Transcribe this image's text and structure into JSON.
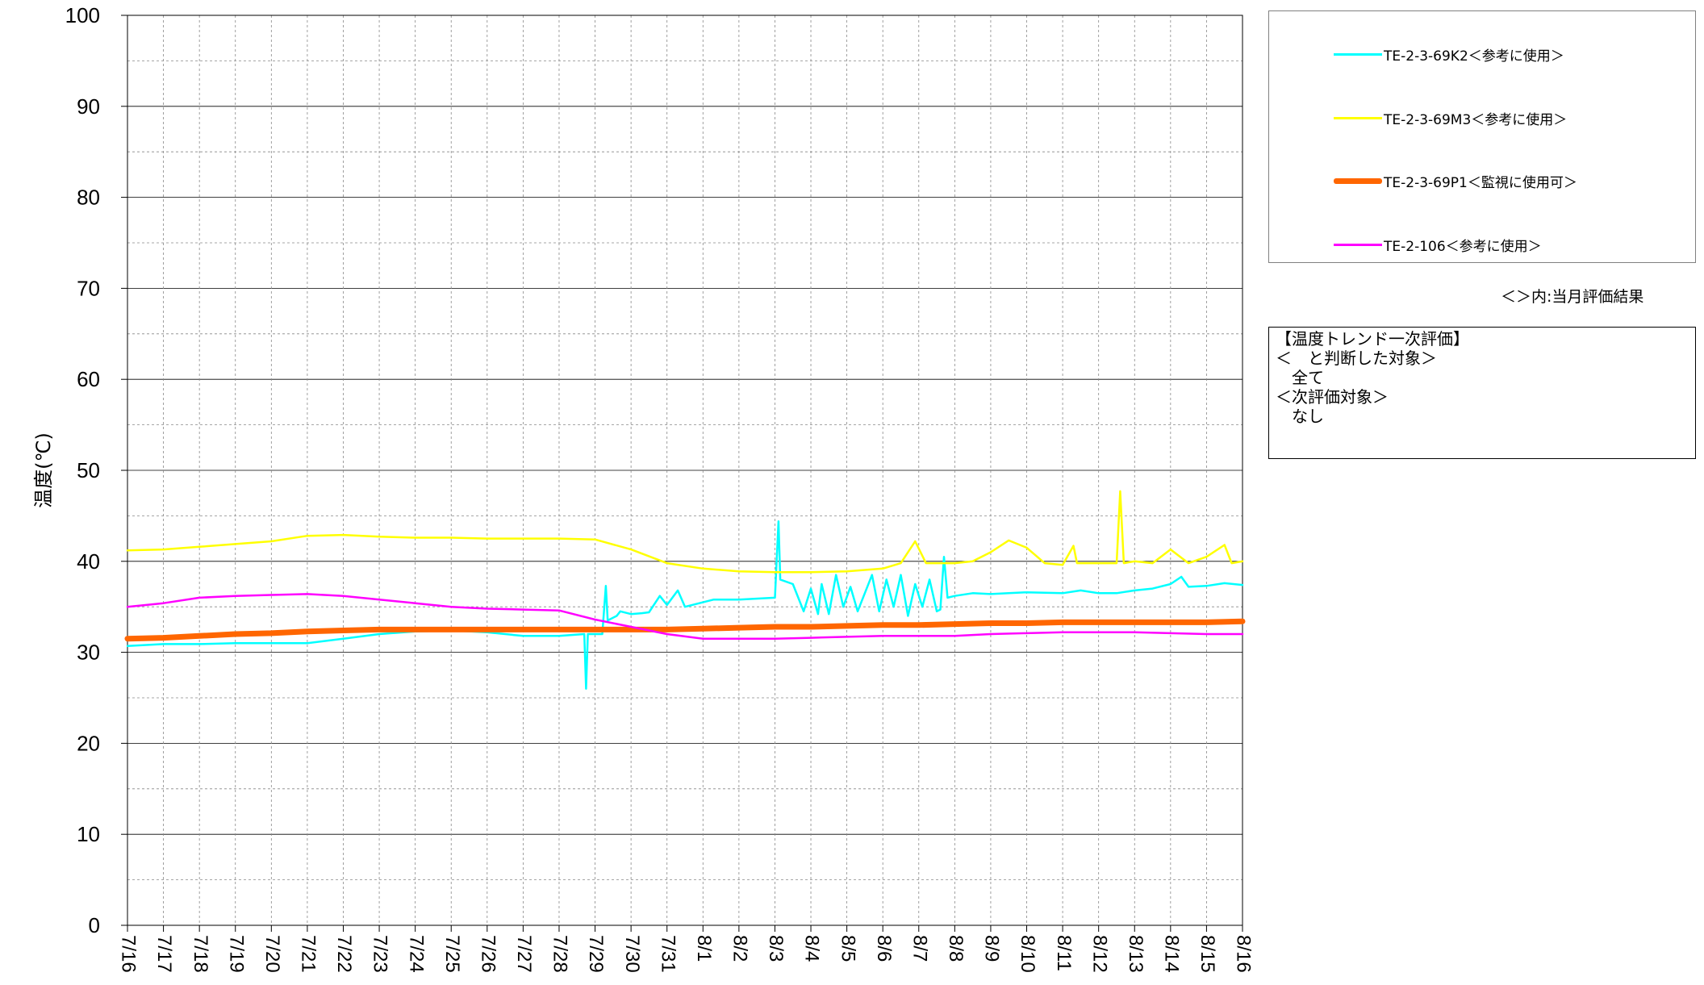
{
  "chart_data": {
    "type": "line",
    "ylabel": "温度(℃)",
    "ylim": [
      0,
      100
    ],
    "yticks": [
      0,
      10,
      20,
      30,
      40,
      50,
      60,
      70,
      80,
      90,
      100
    ],
    "xlim_day": [
      0,
      31
    ],
    "x_tick_labels": [
      "7/16",
      "7/17",
      "7/18",
      "7/19",
      "7/20",
      "7/21",
      "7/22",
      "7/23",
      "7/24",
      "7/25",
      "7/26",
      "7/27",
      "7/28",
      "7/29",
      "7/30",
      "7/31",
      "8/1",
      "8/2",
      "8/3",
      "8/4",
      "8/5",
      "8/6",
      "8/7",
      "8/8",
      "8/9",
      "8/10",
      "8/11",
      "8/12",
      "8/13",
      "8/14",
      "8/15",
      "8/16"
    ],
    "grid": true,
    "legend_position": "right",
    "series": [
      {
        "name": "TE-2-3-69K2＜参考に使用＞",
        "color": "#00ffff",
        "width": 2.5,
        "points": [
          [
            0,
            30.7
          ],
          [
            1,
            30.9
          ],
          [
            2,
            30.9
          ],
          [
            3,
            31.0
          ],
          [
            4,
            31.0
          ],
          [
            5,
            31.0
          ],
          [
            6,
            31.5
          ],
          [
            7,
            32.0
          ],
          [
            8,
            32.3
          ],
          [
            9,
            32.4
          ],
          [
            10,
            32.2
          ],
          [
            11,
            31.8
          ],
          [
            12,
            31.8
          ],
          [
            12.7,
            32.0
          ],
          [
            12.75,
            26.0
          ],
          [
            12.8,
            32.0
          ],
          [
            13.2,
            32.0
          ],
          [
            13.3,
            37.3
          ],
          [
            13.35,
            33.5
          ],
          [
            13.6,
            34.0
          ],
          [
            13.7,
            34.5
          ],
          [
            14.0,
            34.2
          ],
          [
            14.3,
            34.3
          ],
          [
            14.5,
            34.4
          ],
          [
            14.8,
            36.2
          ],
          [
            15.0,
            35.2
          ],
          [
            15.3,
            36.8
          ],
          [
            15.5,
            35.0
          ],
          [
            16.0,
            35.5
          ],
          [
            16.3,
            35.8
          ],
          [
            17.0,
            35.8
          ],
          [
            18.0,
            36.0
          ],
          [
            18.1,
            44.4
          ],
          [
            18.15,
            38.0
          ],
          [
            18.5,
            37.5
          ],
          [
            18.8,
            34.5
          ],
          [
            19.0,
            37.0
          ],
          [
            19.2,
            34.2
          ],
          [
            19.3,
            37.5
          ],
          [
            19.5,
            34.2
          ],
          [
            19.7,
            38.5
          ],
          [
            19.9,
            35.0
          ],
          [
            20.1,
            37.2
          ],
          [
            20.3,
            34.5
          ],
          [
            20.5,
            36.5
          ],
          [
            20.7,
            38.5
          ],
          [
            20.9,
            34.5
          ],
          [
            21.1,
            38.0
          ],
          [
            21.3,
            35.0
          ],
          [
            21.5,
            38.5
          ],
          [
            21.7,
            34.0
          ],
          [
            21.9,
            37.5
          ],
          [
            22.1,
            35.0
          ],
          [
            22.3,
            38.0
          ],
          [
            22.5,
            34.5
          ],
          [
            22.6,
            34.7
          ],
          [
            22.7,
            40.5
          ],
          [
            22.8,
            36.0
          ],
          [
            23.0,
            36.2
          ],
          [
            23.5,
            36.5
          ],
          [
            24.0,
            36.4
          ],
          [
            24.5,
            36.5
          ],
          [
            25.0,
            36.6
          ],
          [
            26.0,
            36.5
          ],
          [
            26.5,
            36.8
          ],
          [
            27.0,
            36.5
          ],
          [
            27.5,
            36.5
          ],
          [
            28.0,
            36.8
          ],
          [
            28.5,
            37.0
          ],
          [
            29.0,
            37.5
          ],
          [
            29.3,
            38.3
          ],
          [
            29.5,
            37.2
          ],
          [
            30.0,
            37.3
          ],
          [
            30.5,
            37.6
          ],
          [
            31.0,
            37.4
          ]
        ]
      },
      {
        "name": "TE-2-3-69M3＜参考に使用＞",
        "color": "#ffff00",
        "width": 2.5,
        "points": [
          [
            0,
            41.2
          ],
          [
            1,
            41.3
          ],
          [
            2,
            41.6
          ],
          [
            3,
            41.9
          ],
          [
            4,
            42.2
          ],
          [
            5,
            42.8
          ],
          [
            6,
            42.9
          ],
          [
            7,
            42.7
          ],
          [
            8,
            42.6
          ],
          [
            9,
            42.6
          ],
          [
            10,
            42.5
          ],
          [
            11,
            42.5
          ],
          [
            12,
            42.5
          ],
          [
            13,
            42.4
          ],
          [
            14,
            41.3
          ],
          [
            15,
            39.8
          ],
          [
            16,
            39.2
          ],
          [
            17,
            38.9
          ],
          [
            18,
            38.8
          ],
          [
            19,
            38.8
          ],
          [
            20,
            38.9
          ],
          [
            21,
            39.2
          ],
          [
            21.5,
            39.8
          ],
          [
            21.9,
            42.2
          ],
          [
            22.2,
            39.8
          ],
          [
            23,
            39.8
          ],
          [
            23.5,
            40.0
          ],
          [
            24,
            41.0
          ],
          [
            24.5,
            42.3
          ],
          [
            25,
            41.5
          ],
          [
            25.5,
            39.8
          ],
          [
            26,
            39.6
          ],
          [
            26.3,
            41.7
          ],
          [
            26.4,
            39.8
          ],
          [
            27,
            39.8
          ],
          [
            27.5,
            39.8
          ],
          [
            27.6,
            47.7
          ],
          [
            27.7,
            39.8
          ],
          [
            28,
            40.0
          ],
          [
            28.5,
            39.8
          ],
          [
            29,
            41.3
          ],
          [
            29.5,
            39.8
          ],
          [
            30,
            40.5
          ],
          [
            30.5,
            41.8
          ],
          [
            30.7,
            39.8
          ],
          [
            31,
            40.0
          ]
        ]
      },
      {
        "name": "TE-2-3-69P1＜監視に使用可＞",
        "color": "#ff6600",
        "width": 7,
        "points": [
          [
            0,
            31.5
          ],
          [
            1,
            31.6
          ],
          [
            2,
            31.8
          ],
          [
            3,
            32.0
          ],
          [
            4,
            32.1
          ],
          [
            5,
            32.3
          ],
          [
            6,
            32.4
          ],
          [
            7,
            32.5
          ],
          [
            8,
            32.5
          ],
          [
            9,
            32.5
          ],
          [
            10,
            32.5
          ],
          [
            11,
            32.5
          ],
          [
            12,
            32.5
          ],
          [
            13,
            32.5
          ],
          [
            14,
            32.5
          ],
          [
            15,
            32.5
          ],
          [
            16,
            32.6
          ],
          [
            17,
            32.7
          ],
          [
            18,
            32.8
          ],
          [
            19,
            32.8
          ],
          [
            20,
            32.9
          ],
          [
            21,
            33.0
          ],
          [
            22,
            33.0
          ],
          [
            23,
            33.1
          ],
          [
            24,
            33.2
          ],
          [
            25,
            33.2
          ],
          [
            26,
            33.3
          ],
          [
            27,
            33.3
          ],
          [
            28,
            33.3
          ],
          [
            29,
            33.3
          ],
          [
            30,
            33.3
          ],
          [
            31,
            33.4
          ]
        ]
      },
      {
        "name": "TE-2-106＜参考に使用＞",
        "color": "#ff00ff",
        "width": 2.5,
        "points": [
          [
            0,
            35.0
          ],
          [
            1,
            35.4
          ],
          [
            2,
            36.0
          ],
          [
            3,
            36.2
          ],
          [
            4,
            36.3
          ],
          [
            5,
            36.4
          ],
          [
            6,
            36.2
          ],
          [
            7,
            35.8
          ],
          [
            8,
            35.4
          ],
          [
            9,
            35.0
          ],
          [
            10,
            34.8
          ],
          [
            11,
            34.7
          ],
          [
            12,
            34.6
          ],
          [
            13,
            33.6
          ],
          [
            14,
            32.8
          ],
          [
            15,
            32.0
          ],
          [
            16,
            31.5
          ],
          [
            17,
            31.5
          ],
          [
            18,
            31.5
          ],
          [
            19,
            31.6
          ],
          [
            20,
            31.7
          ],
          [
            21,
            31.8
          ],
          [
            22,
            31.8
          ],
          [
            23,
            31.8
          ],
          [
            24,
            32.0
          ],
          [
            25,
            32.1
          ],
          [
            26,
            32.2
          ],
          [
            27,
            32.2
          ],
          [
            28,
            32.2
          ],
          [
            29,
            32.1
          ],
          [
            30,
            32.0
          ],
          [
            31,
            32.0
          ]
        ]
      }
    ]
  },
  "legend": {
    "items": [
      {
        "label": "TE-2-3-69K2＜参考に使用＞",
        "color": "#00ffff"
      },
      {
        "label": "TE-2-3-69M3＜参考に使用＞",
        "color": "#ffff00"
      },
      {
        "label": "TE-2-3-69P1＜監視に使用可＞",
        "color": "#ff6600"
      },
      {
        "label": "TE-2-106＜参考に使用＞",
        "color": "#ff00ff"
      }
    ]
  },
  "note": "＜＞内:当月評価結果",
  "evaluation": {
    "title": "【温度トレンド一次評価】",
    "lines": [
      "＜　と判断した対象＞",
      "　全て",
      "＜次評価対象＞",
      "　なし"
    ]
  }
}
